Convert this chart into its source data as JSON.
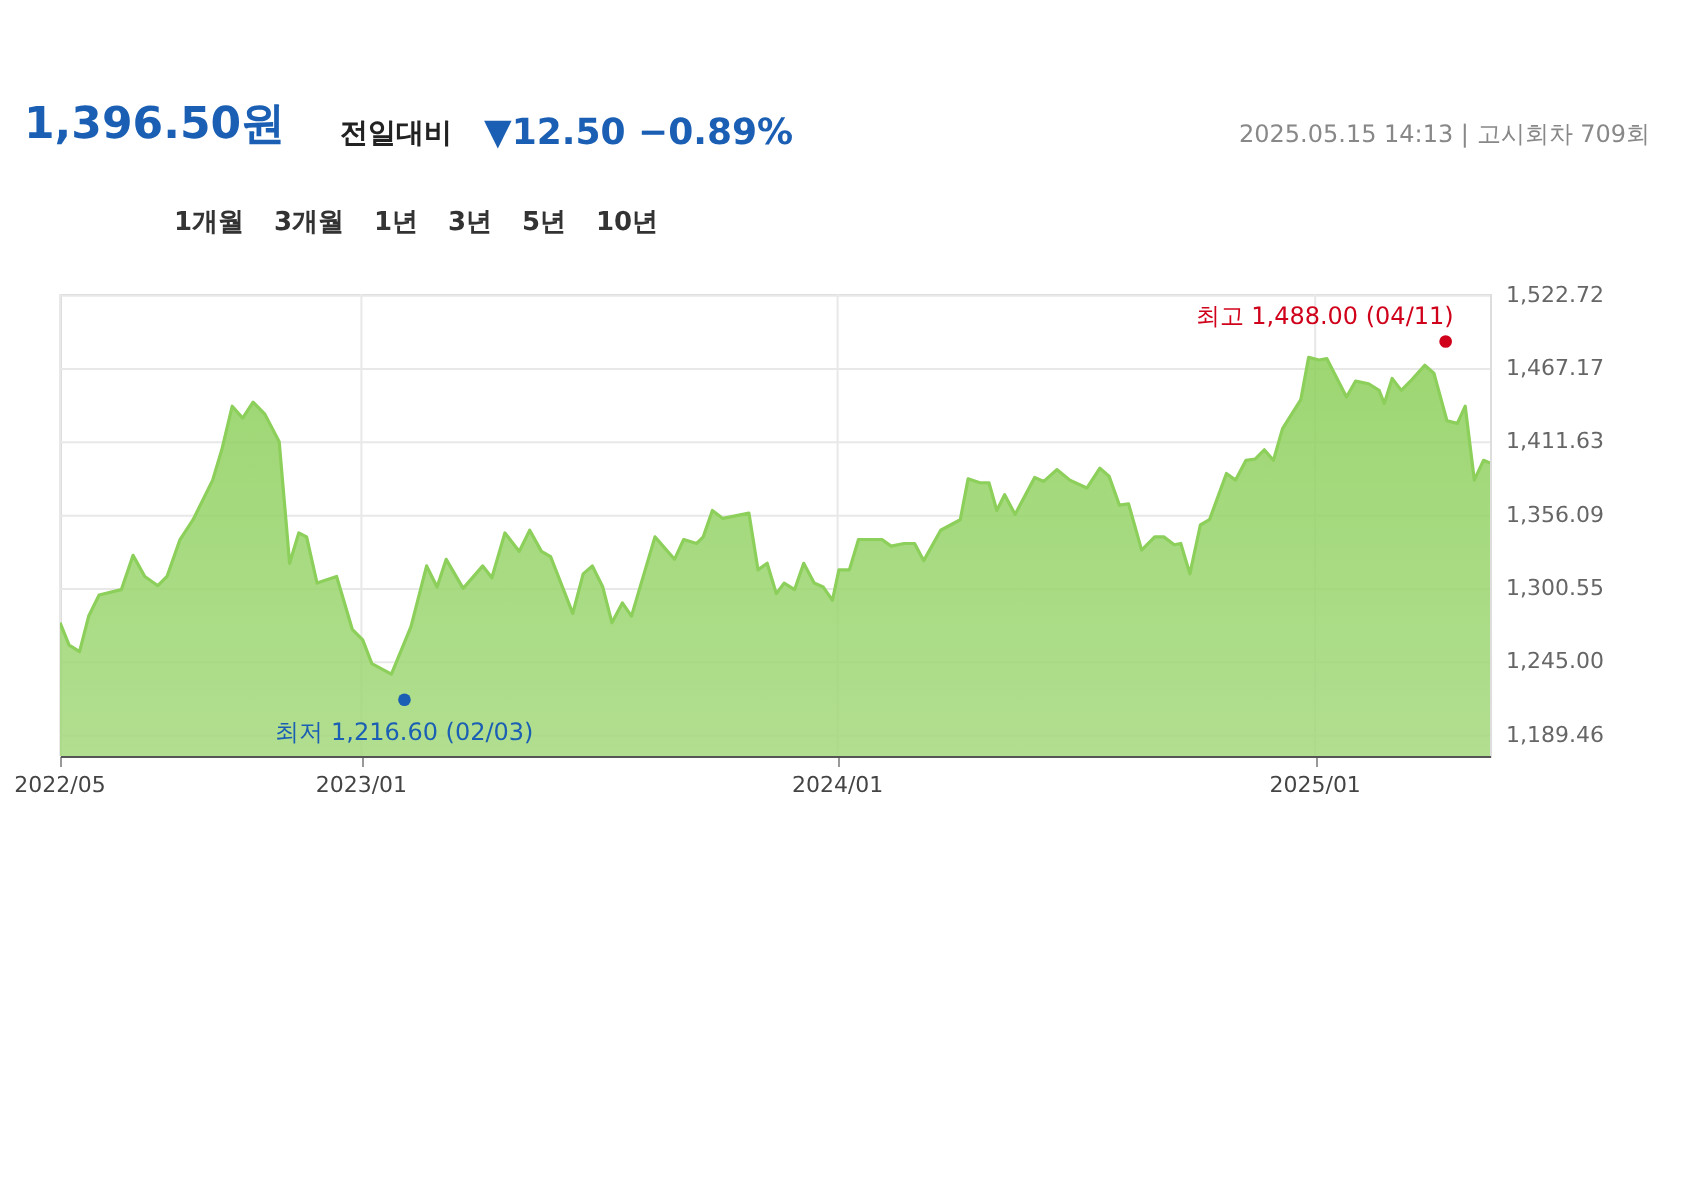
{
  "chart_data": {
    "type": "area",
    "title": "1,396.50원",
    "annotations": [
      "전일대비",
      "▼12.50 −0.89%",
      "2025.05.15 14:13 | 고시회차 709회",
      "1개월",
      "3개월",
      "1년",
      "3년",
      "5년",
      "10년"
    ],
    "x": [
      "2022-05-15",
      "2022-05-22",
      "2022-05-30",
      "2022-06-06",
      "2022-06-14",
      "2022-07-01",
      "2022-07-10",
      "2022-07-19",
      "2022-07-29",
      "2022-08-05",
      "2022-08-15",
      "2022-08-25",
      "2022-09-09",
      "2022-09-16",
      "2022-09-24",
      "2022-10-02",
      "2022-10-10",
      "2022-10-19",
      "2022-10-30",
      "2022-11-07",
      "2022-11-14",
      "2022-11-20",
      "2022-11-28",
      "2022-12-13",
      "2022-12-25",
      "2023-01-02",
      "2023-01-09",
      "2023-01-24",
      "2023-02-08",
      "2023-02-20",
      "2023-02-28",
      "2023-03-07",
      "2023-03-20",
      "2023-04-04",
      "2023-04-11",
      "2023-04-21",
      "2023-05-02",
      "2023-05-10",
      "2023-05-19",
      "2023-05-26",
      "2023-06-12",
      "2023-06-20",
      "2023-06-27",
      "2023-07-05",
      "2023-07-12",
      "2023-07-20",
      "2023-07-27",
      "2023-08-14",
      "2023-08-29",
      "2023-09-05",
      "2023-09-15",
      "2023-09-20",
      "2023-09-27",
      "2023-10-05",
      "2023-10-25",
      "2023-11-01",
      "2023-11-08",
      "2023-11-15",
      "2023-11-21",
      "2023-11-29",
      "2023-12-06",
      "2023-12-14",
      "2023-12-21",
      "2023-12-28",
      "2024-01-02",
      "2024-01-10",
      "2024-01-17",
      "2024-02-04",
      "2024-02-11",
      "2024-02-21",
      "2024-02-29",
      "2024-03-07",
      "2024-03-20",
      "2024-04-04",
      "2024-04-10",
      "2024-04-19",
      "2024-04-26",
      "2024-05-02",
      "2024-05-08",
      "2024-05-16",
      "2024-05-31",
      "2024-06-07",
      "2024-06-17",
      "2024-06-27",
      "2024-07-10",
      "2024-07-20",
      "2024-07-27",
      "2024-08-04",
      "2024-08-11",
      "2024-08-21",
      "2024-08-31",
      "2024-09-07",
      "2024-09-15",
      "2024-09-20",
      "2024-09-27",
      "2024-10-05",
      "2024-10-12",
      "2024-10-25",
      "2024-11-01",
      "2024-11-09",
      "2024-11-16",
      "2024-11-23",
      "2024-11-30",
      "2024-12-07",
      "2024-12-21",
      "2024-12-27",
      "2025-01-04",
      "2025-01-10",
      "2025-01-25",
      "2025-02-01",
      "2025-02-11",
      "2025-02-19",
      "2025-02-23",
      "2025-03-01",
      "2025-03-08",
      "2025-03-16",
      "2025-03-26",
      "2025-04-02",
      "2025-04-12",
      "2025-04-20",
      "2025-04-26",
      "2025-05-03",
      "2025-05-10",
      "2025-05-15"
    ],
    "series": [
      {
        "color": "#8ccf5a",
        "values": [
          1275,
          1258,
          1253,
          1280,
          1296,
          1300,
          1326,
          1310,
          1303,
          1310,
          1338,
          1353,
          1383,
          1406,
          1439,
          1430,
          1442,
          1433,
          1412,
          1320,
          1343,
          1340,
          1305,
          1310,
          1270,
          1262,
          1244,
          1236,
          1272,
          1318,
          1302,
          1323,
          1301,
          1318,
          1309,
          1343,
          1329,
          1345,
          1329,
          1325,
          1282,
          1312,
          1318,
          1302,
          1275,
          1290,
          1280,
          1340,
          1323,
          1338,
          1335,
          1340,
          1360,
          1354,
          1358,
          1315,
          1320,
          1297,
          1305,
          1300,
          1320,
          1305,
          1302,
          1292,
          1315,
          1315,
          1338,
          1338,
          1333,
          1335,
          1335,
          1322,
          1345,
          1353,
          1384,
          1381,
          1381,
          1360,
          1372,
          1357,
          1385,
          1382,
          1391,
          1383,
          1377,
          1392,
          1386,
          1364,
          1365,
          1330,
          1340,
          1340,
          1334,
          1335,
          1312,
          1349,
          1353,
          1388,
          1383,
          1398,
          1399,
          1406,
          1398,
          1422,
          1444,
          1476,
          1474,
          1475,
          1446,
          1458,
          1456,
          1451,
          1441,
          1460,
          1451,
          1459,
          1470,
          1464,
          1428,
          1426,
          1439,
          1383,
          1398,
          1396
        ]
      },
      {
        "type": "scatter",
        "marker": "circle",
        "x": [
          "2025-04-11",
          "2023-02-03"
        ],
        "values": [
          1488,
          1216.6
        ],
        "colors": [
          "#d0021b",
          "#1a5fb4"
        ],
        "value_labels": [
          "최고 1,488.00 (04/11)",
          "최저 1,216.60 (02/03)"
        ]
      }
    ],
    "xlim": [
      "2022-05-15",
      "2025-05-15"
    ],
    "xticks": [
      {
        "value": "2022-05-15",
        "label": "2022/05"
      },
      {
        "value": "2023-01-01",
        "label": "2023/01"
      },
      {
        "value": "2024-01-01",
        "label": "2024/01"
      },
      {
        "value": "2025-01-01",
        "label": "2025/01"
      }
    ],
    "ylim": [
      1174,
      1524
    ],
    "yticks": [
      {
        "value": 1189.46,
        "label": "1,189.46"
      },
      {
        "value": 1245,
        "label": "1,245.00"
      },
      {
        "value": 1300.55,
        "label": "1,300.55"
      },
      {
        "value": 1356.09,
        "label": "1,356.09"
      },
      {
        "value": 1411.63,
        "label": "1,411.63"
      },
      {
        "value": 1467.17,
        "label": "1,467.17"
      },
      {
        "value": 1522.72,
        "label": "1,522.72"
      }
    ],
    "grid": true
  }
}
